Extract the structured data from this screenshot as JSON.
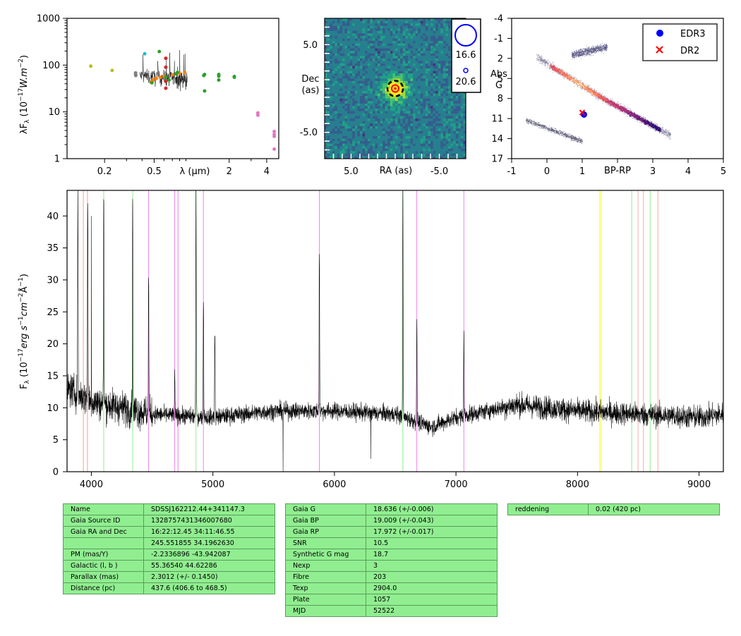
{
  "chart_data": [
    {
      "type": "scatter",
      "panel": "sed",
      "xlabel": "λ (μm)",
      "ylabel": "λF_λ (10^-17 W.m^-2)",
      "xscale": "log",
      "yscale": "log",
      "xlim": [
        0.1,
        5.0
      ],
      "ylim": [
        1,
        1000
      ],
      "xticks": [
        {
          "v": 0.2,
          "t": "0.2"
        },
        {
          "v": 0.5,
          "t": "0.5"
        },
        {
          "v": 2,
          "t": "2"
        },
        {
          "v": 4,
          "t": "4"
        }
      ],
      "yticks": [
        {
          "v": 1,
          "t": "1"
        },
        {
          "v": 10,
          "t": "10"
        },
        {
          "v": 100,
          "t": "100"
        },
        {
          "v": 1000,
          "t": "1000"
        }
      ],
      "points": [
        {
          "x": 0.155,
          "y": 95,
          "c": "#bcbd22"
        },
        {
          "x": 0.23,
          "y": 77,
          "c": "#bcbd22"
        },
        {
          "x": 0.355,
          "y": 64,
          "c": "#7f7f7f"
        },
        {
          "x": 0.355,
          "y": 68,
          "c": "#7f7f7f"
        },
        {
          "x": 0.356,
          "y": 60,
          "c": "#7f7f7f"
        },
        {
          "x": 0.42,
          "y": 175,
          "c": "#17becf"
        },
        {
          "x": 0.47,
          "y": 43,
          "c": "#ff7f0e"
        },
        {
          "x": 0.49,
          "y": 48,
          "c": "#ff7f0e"
        },
        {
          "x": 0.52,
          "y": 52,
          "c": "#ff7f0e"
        },
        {
          "x": 0.56,
          "y": 55,
          "c": "#ff7f0e"
        },
        {
          "x": 0.6,
          "y": 57,
          "c": "#ff7f0e"
        },
        {
          "x": 0.7,
          "y": 62,
          "c": "#ff7f0e"
        },
        {
          "x": 0.8,
          "y": 66,
          "c": "#ff7f0e"
        },
        {
          "x": 0.88,
          "y": 70,
          "c": "#ff7f0e"
        },
        {
          "x": 0.48,
          "y": 42,
          "c": "#2ca02c"
        },
        {
          "x": 0.55,
          "y": 195,
          "c": "#2ca02c"
        },
        {
          "x": 0.62,
          "y": 55,
          "c": "#2ca02c"
        },
        {
          "x": 0.66,
          "y": 48,
          "c": "#2ca02c"
        },
        {
          "x": 0.75,
          "y": 65,
          "c": "#2ca02c"
        },
        {
          "x": 0.77,
          "y": 70,
          "c": "#2ca02c"
        },
        {
          "x": 0.62,
          "y": 140,
          "c": "#d62728"
        },
        {
          "x": 0.62,
          "y": 90,
          "c": "#d62728"
        },
        {
          "x": 0.62,
          "y": 45,
          "c": "#d62728"
        },
        {
          "x": 0.62,
          "y": 32,
          "c": "#d62728"
        },
        {
          "x": 1.25,
          "y": 60,
          "c": "#2ca02c"
        },
        {
          "x": 1.27,
          "y": 63,
          "c": "#2ca02c"
        },
        {
          "x": 1.27,
          "y": 28,
          "c": "#2ca02c"
        },
        {
          "x": 1.65,
          "y": 63,
          "c": "#2ca02c"
        },
        {
          "x": 1.65,
          "y": 58,
          "c": "#2ca02c"
        },
        {
          "x": 1.65,
          "y": 48,
          "c": "#2ca02c"
        },
        {
          "x": 2.2,
          "y": 57,
          "c": "#2ca02c"
        },
        {
          "x": 2.2,
          "y": 55,
          "c": "#2ca02c"
        },
        {
          "x": 3.4,
          "y": 9.5,
          "c": "#e377c2"
        },
        {
          "x": 3.4,
          "y": 8.5,
          "c": "#e377c2"
        },
        {
          "x": 4.6,
          "y": 3.8,
          "c": "#e377c2"
        },
        {
          "x": 4.6,
          "y": 3.3,
          "c": "#e377c2"
        },
        {
          "x": 4.6,
          "y": 3.0,
          "c": "#e377c2"
        },
        {
          "x": 4.6,
          "y": 1.6,
          "c": "#e377c2"
        }
      ]
    },
    {
      "type": "heatmap",
      "panel": "image",
      "xlabel": "RA (as)",
      "ylabel": "Dec\n(as)",
      "xlim": [
        8.0,
        -8.0
      ],
      "ylim": [
        -8.0,
        8.0
      ],
      "xticks": [
        {
          "v": 5,
          "t": "5.0"
        },
        {
          "v": -5,
          "t": "-5.0"
        }
      ],
      "yticks": [
        {
          "v": 5,
          "t": "5.0"
        },
        {
          "v": -5,
          "t": "-5.0"
        }
      ],
      "source": {
        "x": 0.0,
        "y": 0.0
      },
      "legend": [
        {
          "mag": "16.6",
          "c": "#0000ff"
        },
        {
          "mag": "20.6",
          "c": "#0000ff"
        }
      ]
    },
    {
      "type": "scatter",
      "panel": "hr",
      "xlabel": "BP-RP",
      "ylabel": "Abs\nG",
      "xlim": [
        -1,
        5
      ],
      "ylim": [
        17,
        -4
      ],
      "xticks": [
        {
          "v": -1,
          "t": "-1"
        },
        {
          "v": 0,
          "t": "0"
        },
        {
          "v": 1,
          "t": "1"
        },
        {
          "v": 3,
          "t": "3"
        },
        {
          "v": 4,
          "t": "4"
        },
        {
          "v": 5,
          "t": "5"
        }
      ],
      "yticks": [
        {
          "v": -4,
          "t": "-4"
        },
        {
          "v": -1,
          "t": "-1"
        },
        {
          "v": 2,
          "t": "2"
        },
        {
          "v": 5,
          "t": "5"
        },
        {
          "v": 8,
          "t": "8"
        },
        {
          "v": 11,
          "t": "11"
        },
        {
          "v": 14,
          "t": "14"
        },
        {
          "v": 17,
          "t": "17"
        }
      ],
      "series": [
        {
          "name": "EDR3",
          "marker": "circle",
          "color": "#0000ff",
          "x": 1.05,
          "y": 10.4
        },
        {
          "name": "DR2",
          "marker": "x",
          "color": "#ff0000",
          "x": 1.0,
          "y": 10.1
        }
      ],
      "legend_position": "top-right"
    },
    {
      "type": "line",
      "panel": "spectrum",
      "xlabel": "",
      "ylabel": "F_λ (10^-17 erg s^-1 cm^-2 Å^-1)",
      "xlim": [
        3800,
        9200
      ],
      "ylim": [
        0,
        44
      ],
      "xticks": [
        4000,
        5000,
        6000,
        7000,
        8000,
        9000
      ],
      "yticks": [
        0,
        5,
        10,
        15,
        20,
        25,
        30,
        35,
        40
      ],
      "continuum": [
        [
          3800,
          13
        ],
        [
          4000,
          11
        ],
        [
          4500,
          9
        ],
        [
          5000,
          8.5
        ],
        [
          5500,
          9.5
        ],
        [
          6000,
          9.5
        ],
        [
          6500,
          9
        ],
        [
          6800,
          7
        ],
        [
          7000,
          8.5
        ],
        [
          7500,
          10.5
        ],
        [
          8000,
          9.5
        ],
        [
          8500,
          9
        ],
        [
          9000,
          8.5
        ],
        [
          9200,
          9
        ]
      ],
      "emission": [
        [
          3889,
          44
        ],
        [
          3970,
          44
        ],
        [
          4102,
          44
        ],
        [
          4340,
          44
        ],
        [
          4471,
          31
        ],
        [
          4686,
          15
        ],
        [
          4861,
          44
        ],
        [
          4922,
          28
        ],
        [
          5016,
          22
        ],
        [
          5876,
          35
        ],
        [
          6563,
          44
        ],
        [
          6678,
          23
        ],
        [
          7065,
          22
        ]
      ],
      "glitches": [
        [
          5577,
          0
        ],
        [
          6300,
          2
        ],
        [
          4000,
          40
        ]
      ],
      "vlines": [
        {
          "x": 3934,
          "c": "#ff9999"
        },
        {
          "x": 3968,
          "c": "#ff9999"
        },
        {
          "x": 4102,
          "c": "#90ee90"
        },
        {
          "x": 4340,
          "c": "#90ee90"
        },
        {
          "x": 4861,
          "c": "#90ee90"
        },
        {
          "x": 6563,
          "c": "#90ee90"
        },
        {
          "x": 4471,
          "c": "#ee82ee"
        },
        {
          "x": 4686,
          "c": "#ee82ee"
        },
        {
          "x": 4713,
          "c": "#ee82ee"
        },
        {
          "x": 4922,
          "c": "#ee82ee"
        },
        {
          "x": 5876,
          "c": "#ee82ee"
        },
        {
          "x": 6678,
          "c": "#ee82ee"
        },
        {
          "x": 7065,
          "c": "#ee82ee"
        },
        {
          "x": 8183,
          "c": "#ffff00"
        },
        {
          "x": 8195,
          "c": "#ffff00"
        },
        {
          "x": 8446,
          "c": "#90ee90"
        },
        {
          "x": 8498,
          "c": "#ffaaaa"
        },
        {
          "x": 8542,
          "c": "#ffaaaa"
        },
        {
          "x": 8598,
          "c": "#90ee90"
        },
        {
          "x": 8662,
          "c": "#ffaaaa"
        }
      ]
    }
  ],
  "tables": [
    {
      "rows": [
        [
          "Name",
          "SDSSJ162212.44+341147.3"
        ],
        [
          "Gaia Source ID",
          "1328757431346007680"
        ],
        [
          "Gaia RA and Dec",
          "16:22:12.45    34:11:46.55"
        ],
        [
          "",
          "245.551855    34.1962630"
        ],
        [
          "PM (mas/Y)",
          "-2.2336896    -43.942087"
        ],
        [
          "Galactic (l, b )",
          "55.36540    44.62286"
        ],
        [
          "Parallax (mas)",
          "2.3012 (+/- 0.1450)"
        ],
        [
          "Distance (pc)",
          "437.6 (406.6 to 468.5)"
        ]
      ]
    },
    {
      "rows": [
        [
          "Gaia G",
          "18.636 (+/-0.006)"
        ],
        [
          "Gaia BP",
          "19.009 (+/-0.043)"
        ],
        [
          "Gaia RP",
          "17.972 (+/-0.017)"
        ],
        [
          "SNR",
          "10.5"
        ],
        [
          "Synthetic G mag",
          "18.7"
        ],
        [
          "Nexp",
          "3"
        ],
        [
          "Fibre",
          "203"
        ],
        [
          "Texp",
          "2904.0"
        ],
        [
          "Plate",
          "1057"
        ],
        [
          "MJD",
          "52522"
        ]
      ]
    },
    {
      "rows": [
        [
          "reddening",
          "0.02 (420 pc)"
        ]
      ]
    }
  ]
}
